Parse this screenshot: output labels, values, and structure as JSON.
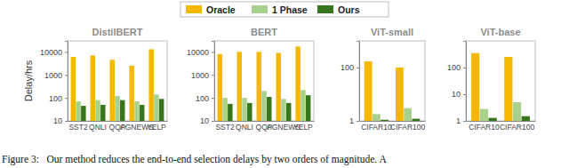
{
  "chart_data": [
    {
      "type": "bar",
      "title": "DistilBERT",
      "y_label": "Delay/hrs",
      "log": "y",
      "legend": "top",
      "categories": [
        "SST2",
        "QNLI",
        "QQP",
        "AGNEWS",
        "YELP"
      ],
      "series": [
        {
          "name": "Oracle",
          "color": "#f5b800",
          "values": [
            6000,
            7000,
            4500,
            2500,
            13000
          ]
        },
        {
          "name": "1 Phase",
          "color": "#a9d18e",
          "values": [
            70,
            80,
            120,
            70,
            140
          ]
        },
        {
          "name": "Ours",
          "color": "#38761d",
          "values": [
            45,
            50,
            80,
            50,
            90
          ]
        }
      ],
      "ylim": [
        10,
        30000
      ],
      "yticks": [
        10,
        100,
        1000,
        10000
      ]
    },
    {
      "type": "bar",
      "title": "BERT",
      "log": "y",
      "categories": [
        "SST2",
        "QNLI",
        "QQP",
        "AGNEWS",
        "YELP"
      ],
      "series": [
        {
          "name": "Oracle",
          "color": "#f5b800",
          "values": [
            8000,
            10000,
            10000,
            9000,
            17000
          ]
        },
        {
          "name": "1 Phase",
          "color": "#a9d18e",
          "values": [
            100,
            100,
            200,
            90,
            220
          ]
        },
        {
          "name": "Ours",
          "color": "#38761d",
          "values": [
            55,
            60,
            110,
            60,
            130
          ]
        }
      ],
      "ylim": [
        10,
        30000
      ],
      "yticks": [
        10,
        100,
        1000,
        10000
      ]
    },
    {
      "type": "bar",
      "title": "ViT-small",
      "log": "y",
      "categories": [
        "CIFAR10",
        "CIFAR100"
      ],
      "series": [
        {
          "name": "Oracle",
          "color": "#f5b800",
          "values": [
            170,
            100
          ]
        },
        {
          "name": "1 Phase",
          "color": "#a9d18e",
          "values": [
            1.8,
            3
          ]
        },
        {
          "name": "Ours",
          "color": "#38761d",
          "values": [
            1.1,
            1.2
          ]
        }
      ],
      "ylim": [
        1,
        1000
      ],
      "yticks": [
        1,
        100
      ]
    },
    {
      "type": "bar",
      "title": "ViT-base",
      "log": "y",
      "categories": [
        "CIFAR10",
        "CIFAR100"
      ],
      "series": [
        {
          "name": "Oracle",
          "color": "#f5b800",
          "values": [
            350,
            250
          ]
        },
        {
          "name": "1 Phase",
          "color": "#a9d18e",
          "values": [
            2.8,
            5
          ]
        },
        {
          "name": "Ours",
          "color": "#38761d",
          "values": [
            1.3,
            1.5
          ]
        }
      ],
      "ylim": [
        1,
        1000
      ],
      "yticks": [
        1,
        10,
        100
      ]
    }
  ],
  "caption": "Figure 3:   Our method reduces the end-to-end selection delays by two orders of magnitude. A"
}
